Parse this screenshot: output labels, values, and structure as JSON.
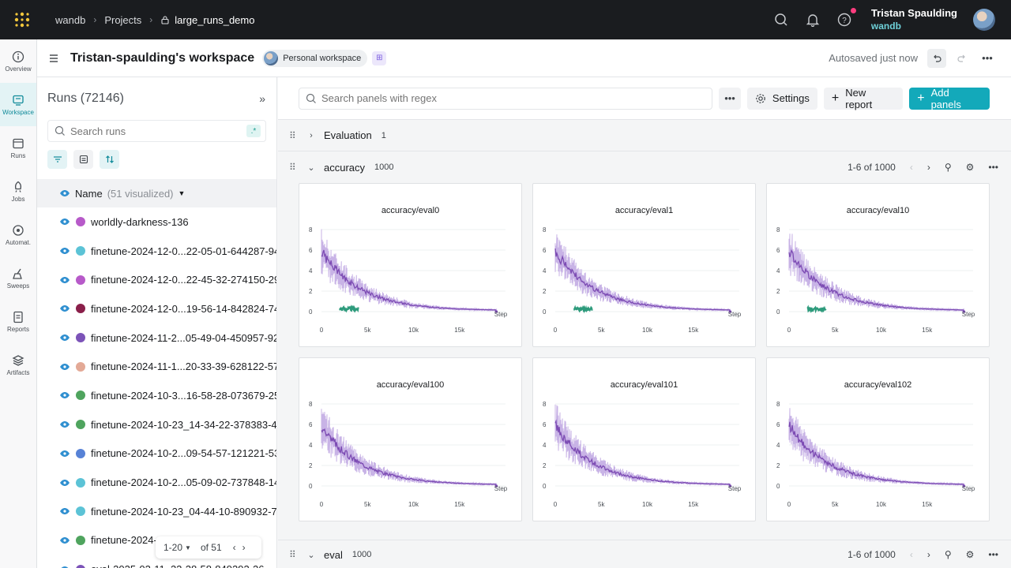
{
  "nav": {
    "crumb_entity": "wandb",
    "crumb_projects": "Projects",
    "crumb_project": "large_runs_demo",
    "user_name": "Tristan Spaulding",
    "user_entity": "wandb"
  },
  "rail": [
    {
      "label": "Overview",
      "icon": "info-circle-icon"
    },
    {
      "label": "Workspace",
      "icon": "workspace-icon"
    },
    {
      "label": "Runs",
      "icon": "table-icon"
    },
    {
      "label": "Jobs",
      "icon": "rocket-icon"
    },
    {
      "label": "Automat.",
      "icon": "automation-icon"
    },
    {
      "label": "Sweeps",
      "icon": "broom-icon"
    },
    {
      "label": "Reports",
      "icon": "report-icon"
    },
    {
      "label": "Artifacts",
      "icon": "layers-icon"
    }
  ],
  "workspace": {
    "title": "Tristan-spaulding's workspace",
    "badge": "Personal workspace",
    "autosaved": "Autosaved just now"
  },
  "runs": {
    "title": "Runs (72146)",
    "search_placeholder": "Search runs",
    "regex_label": ".*",
    "col_name": "Name",
    "col_visualized": "(51 visualized)",
    "rows": [
      {
        "name": "worldly-darkness-136",
        "color": "#b75ac9"
      },
      {
        "name": "finetune-2024-12-0...22-05-01-644287-94",
        "color": "#5cc3d6"
      },
      {
        "name": "finetune-2024-12-0...22-45-32-274150-29",
        "color": "#b75ac9"
      },
      {
        "name": "finetune-2024-12-0...19-56-14-842824-74",
        "color": "#8a1f4a"
      },
      {
        "name": "finetune-2024-11-2...05-49-04-450957-92",
        "color": "#7c53b8"
      },
      {
        "name": "finetune-2024-11-1...20-33-39-628122-57",
        "color": "#e3a996"
      },
      {
        "name": "finetune-2024-10-3...16-58-28-073679-25",
        "color": "#4fa45e"
      },
      {
        "name": "finetune-2024-10-23_14-34-22-378383-4",
        "color": "#4fa45e"
      },
      {
        "name": "finetune-2024-10-2...09-54-57-121221-53",
        "color": "#5782d6"
      },
      {
        "name": "finetune-2024-10-2...05-09-02-737848-14",
        "color": "#5cc3d6"
      },
      {
        "name": "finetune-2024-10-23_04-44-10-890932-7",
        "color": "#5cc3d6"
      },
      {
        "name": "finetune-2024-...5",
        "color": "#4fa45e"
      },
      {
        "name": "eval-2025-02-11_22-28-58-849292-26",
        "color": "#7c53b8"
      }
    ],
    "pager_range": "1-20",
    "pager_of": "of 51"
  },
  "toolbar": {
    "search_placeholder": "Search panels with regex",
    "settings": "Settings",
    "new_report": "New report",
    "add_panels": "Add panels"
  },
  "sections": {
    "evaluation_title": "Evaluation",
    "evaluation_count": "1",
    "accuracy_title": "accuracy",
    "accuracy_count": "1000",
    "accuracy_range": "1-6 of 1000",
    "eval_title": "eval",
    "eval_count": "1000",
    "eval_range": "1-6 of 1000"
  },
  "panels": [
    {
      "title": "accuracy/eval0",
      "green": true
    },
    {
      "title": "accuracy/eval1",
      "green": true
    },
    {
      "title": "accuracy/eval10",
      "green": true
    },
    {
      "title": "accuracy/eval100",
      "green": false
    },
    {
      "title": "accuracy/eval101",
      "green": false
    },
    {
      "title": "accuracy/eval102",
      "green": false
    }
  ],
  "chart_axes": {
    "yticks": [
      "8",
      "6",
      "4",
      "2",
      "0"
    ],
    "xticks": [
      "0",
      "5k",
      "10k",
      "15k"
    ],
    "xlabel": "Step"
  },
  "colors": {
    "accent": "#13a9ba",
    "series_purple": "#7c4bb3",
    "series_green": "#2e9b7c"
  }
}
